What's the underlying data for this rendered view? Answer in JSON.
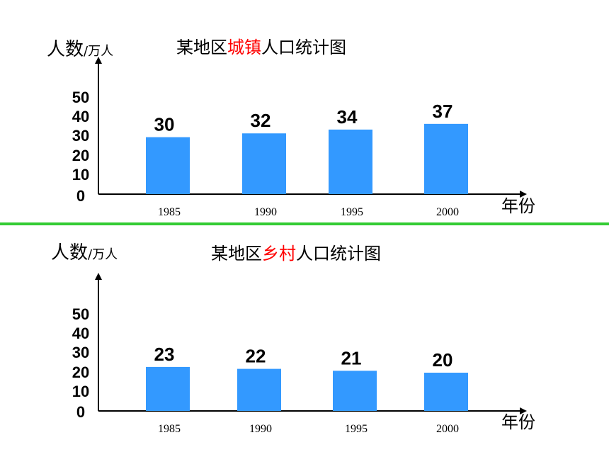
{
  "colors": {
    "bar": "#3399ff",
    "divider": "#33cc33",
    "highlight": "#ff0000",
    "axis": "#000000"
  },
  "chart_data": [
    {
      "type": "bar",
      "title_prefix": "某地区",
      "title_highlight": "城镇",
      "title_suffix": "人口统计图",
      "ylabel": "人数",
      "ylabel_unit": "/万人",
      "xlabel": "年份",
      "categories": [
        "1985",
        "1990",
        "1995",
        "2000"
      ],
      "values": [
        30,
        32,
        34,
        37
      ],
      "yticks": [
        0,
        10,
        20,
        30,
        40,
        50
      ],
      "ylim": [
        0,
        50
      ],
      "grid": false
    },
    {
      "type": "bar",
      "title_prefix": "某地区",
      "title_highlight": "乡村",
      "title_suffix": "人口统计图",
      "ylabel": "人数",
      "ylabel_unit": "/万人",
      "xlabel": "年份",
      "categories": [
        "1985",
        "1990",
        "1995",
        "2000"
      ],
      "values": [
        23,
        22,
        21,
        20
      ],
      "yticks": [
        0,
        10,
        20,
        30,
        40,
        50
      ],
      "ylim": [
        0,
        50
      ],
      "grid": false
    }
  ]
}
